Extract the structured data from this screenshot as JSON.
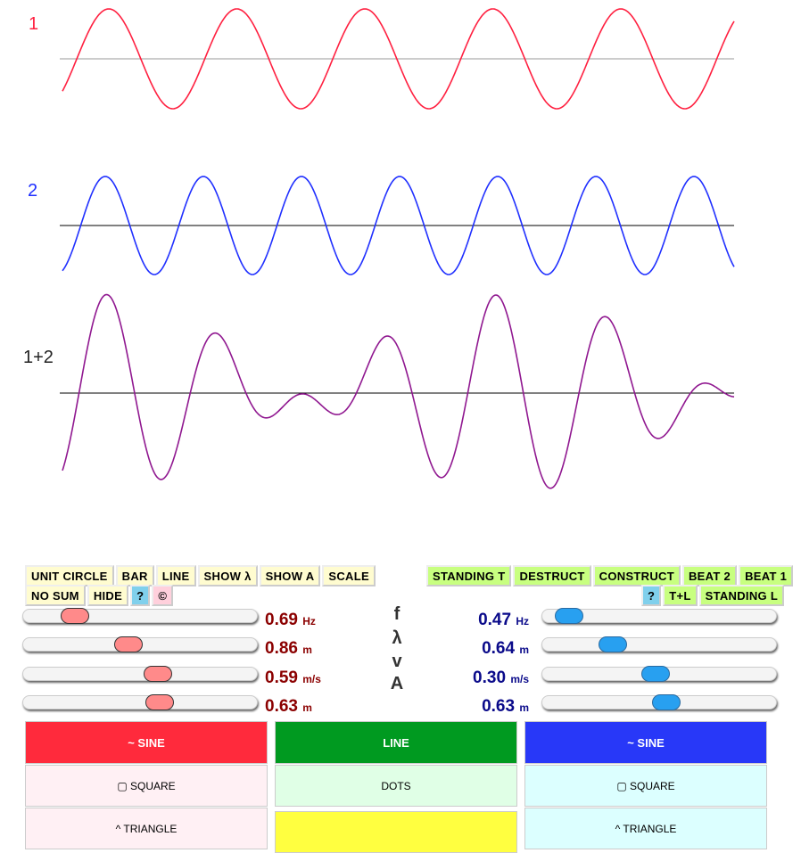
{
  "labels": {
    "wave1": "1",
    "wave2": "2",
    "sum": "1+2"
  },
  "colors": {
    "wave1": "#ff2040",
    "wave2": "#2030ff",
    "sum": "#901890",
    "axis": "#000000"
  },
  "left_buttons": [
    "UNIT CIRCLE",
    "BAR",
    "LINE",
    "SHOW λ",
    "SHOW A",
    "SCALE"
  ],
  "left_buttons2": [
    "NO SUM",
    "HIDE",
    "?",
    "©"
  ],
  "right_buttons": [
    "STANDING T",
    "DESTRUCT",
    "CONSTRUCT",
    "BEAT 2",
    "BEAT 1"
  ],
  "right_buttons2": [
    "?",
    "T+L",
    "STANDING L"
  ],
  "symbols": [
    "f",
    "λ",
    "v",
    "A"
  ],
  "wave1_params": [
    {
      "value": "0.69",
      "unit": "Hz",
      "slider": 0.18
    },
    {
      "value": "0.86",
      "unit": "m",
      "slider": 0.44
    },
    {
      "value": "0.59",
      "unit": "m/s",
      "slider": 0.58
    },
    {
      "value": "0.63",
      "unit": "m",
      "slider": 0.59
    }
  ],
  "wave2_params": [
    {
      "value": "0.47",
      "unit": "Hz",
      "slider": 0.06
    },
    {
      "value": "0.64",
      "unit": "m",
      "slider": 0.27
    },
    {
      "value": "0.30",
      "unit": "m/s",
      "slider": 0.48
    },
    {
      "value": "0.63",
      "unit": "m",
      "slider": 0.53
    }
  ],
  "panels": {
    "left": [
      "~ SINE",
      "▢ SQUARE",
      "^ TRIANGLE"
    ],
    "middle": [
      "LINE",
      "DOTS",
      ""
    ],
    "right": [
      "~ SINE",
      "▢ SQUARE",
      "^ TRIANGLE"
    ]
  }
}
